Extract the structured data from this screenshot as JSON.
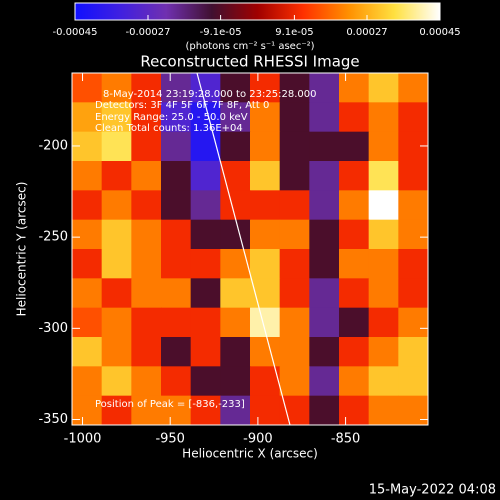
{
  "chart_data": {
    "type": "heatmap",
    "title": "Reconstructed RHESSI Image",
    "xlabel": "Heliocentric X (arcsec)",
    "ylabel": "Heliocentric Y (arcsec)",
    "xlim": [
      -1006,
      -803
    ],
    "ylim": [
      -353,
      -160
    ],
    "xticks": [
      -1000,
      -950,
      -900,
      -850
    ],
    "yticks": [
      -200,
      -250,
      -300,
      -350
    ],
    "colorbar_label": "(photons cm⁻² s⁻¹ asec⁻²)",
    "zlim": [
      -0.00045,
      0.00045
    ],
    "zticks": [
      -0.00045,
      -0.00027,
      {
        "value": -9.1e-05,
        "label": "-9.1e-05"
      },
      {
        "value": 9.1e-05,
        "label": "9.1e-05"
      },
      0.00027,
      0.00045
    ],
    "colormap": [
      "#1010ff",
      "#4020e0",
      "#7030b0",
      "#401030",
      "#a00000",
      "#ff3000",
      "#ff9000",
      "#ffe040",
      "#ffffff"
    ],
    "annotations": [
      "8-May-2014 23:19:28.000 to 23:25:28.000",
      "Detectors: 3F 4F 5F 6F 7F 8F, Att 0",
      "Energy Range: 25.0 - 50.0 keV",
      "Clean     Total counts: 1.36E+04",
      "Position of Peak = [-836,-233]"
    ],
    "footer": "15-May-2022 04:08",
    "z": [
      [
        0.00015,
        0.0002,
        0.0001,
        -0.0002,
        -0.0003,
        -0.0001,
        0.0001,
        -0.0001,
        -0.0002,
        0.0002,
        0.0003,
        0.0002
      ],
      [
        0.00025,
        0.0003,
        0.0001,
        -0.0003,
        -0.0004,
        -0.0002,
        0.0002,
        -0.0001,
        -0.0002,
        0.0001,
        0.0002,
        0.0001
      ],
      [
        0.0003,
        0.00035,
        0.0001,
        -0.0002,
        -0.0004,
        -0.0001,
        0.0002,
        -0.0001,
        -0.0001,
        -0.0001,
        0.0002,
        0.0001
      ],
      [
        0.0002,
        0.0001,
        0.0002,
        -0.0001,
        -0.0003,
        0.0001,
        0.0003,
        -0.0001,
        -0.0002,
        0.0001,
        0.00035,
        0.0001
      ],
      [
        0.0001,
        0.0002,
        0.0001,
        -0.0001,
        -0.0002,
        0.0001,
        0.0001,
        0.0001,
        -0.0002,
        0.0002,
        0.00045,
        0.0002
      ],
      [
        0.0002,
        0.0003,
        0.0002,
        0.0001,
        -0.0001,
        -0.0001,
        0.0002,
        0.0002,
        -0.0001,
        0.0001,
        0.0003,
        0.0002
      ],
      [
        0.0001,
        0.0003,
        0.0002,
        0.0001,
        0.0001,
        0.0002,
        0.0003,
        0.0001,
        -0.0001,
        0.0002,
        0.0002,
        0.0001
      ],
      [
        0.0002,
        0.0001,
        0.0002,
        0.0002,
        -0.0001,
        0.0003,
        0.0003,
        0.0001,
        -0.0002,
        0.0001,
        0.0002,
        0.0001
      ],
      [
        0.00015,
        0.0002,
        0.0001,
        0.0001,
        0.0001,
        0.0002,
        0.0004,
        0.0002,
        -0.0002,
        -0.0001,
        0.0001,
        0.0002
      ],
      [
        0.0003,
        0.0002,
        0.0001,
        -0.0001,
        0.0001,
        -0.0001,
        0.0002,
        0.0002,
        -0.0001,
        0.0001,
        0.0002,
        0.0003
      ],
      [
        0.0002,
        0.0003,
        0.0002,
        0.0001,
        -0.0001,
        -0.0001,
        0.0001,
        0.0002,
        -0.0002,
        0.0002,
        0.0003,
        0.0003
      ],
      [
        0.0002,
        0.0001,
        0.0002,
        0.0002,
        0.0001,
        -0.0002,
        0.0001,
        0.0001,
        -0.0001,
        0.0001,
        0.0002,
        0.0002
      ]
    ]
  }
}
